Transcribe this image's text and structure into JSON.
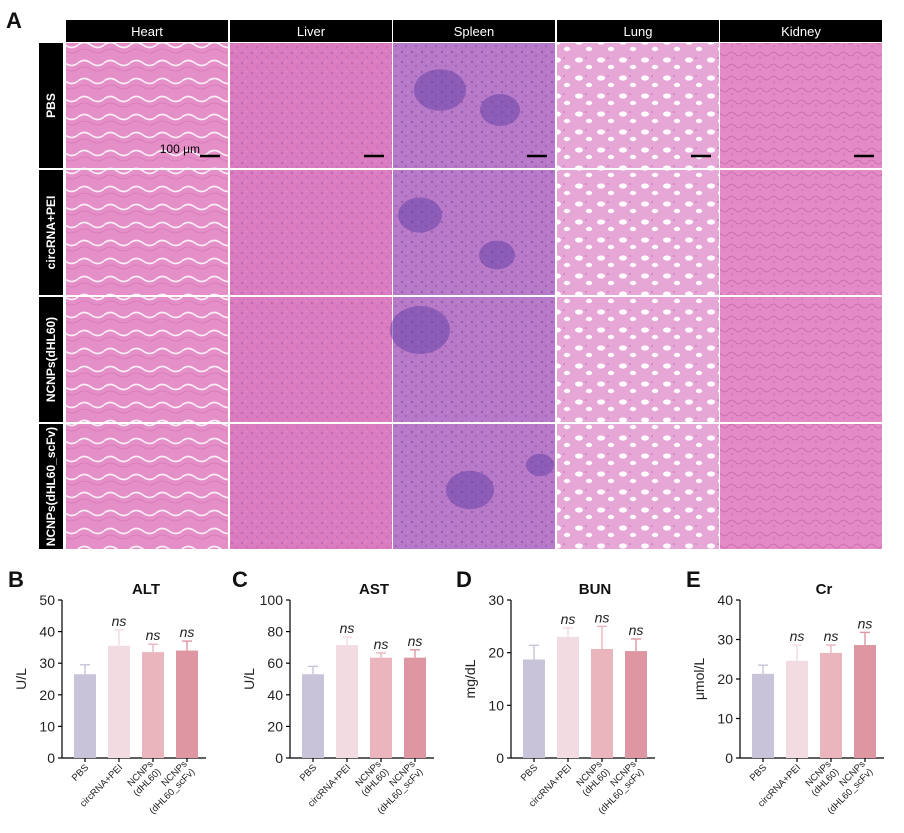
{
  "panel_labels": {
    "A": "A",
    "B": "B",
    "C": "C",
    "D": "D",
    "E": "E"
  },
  "histology": {
    "organs": [
      "Heart",
      "Liver",
      "Spleen",
      "Lung",
      "Kidney"
    ],
    "groups": [
      "PBS",
      "circRNA+PEI",
      "NCNPs(dHL60)",
      "NCNPs(dHL60_scFv)"
    ],
    "scale_bar_label": "100 μm",
    "tissue_colors": {
      "Heart": "#e58fc8",
      "Liver": "#dc7cc0",
      "Spleen": "#b979c9",
      "Lung": "#e6a6d6",
      "Kidney": "#e48ac6"
    }
  },
  "bar_colors": [
    "#c8c3d8",
    "#f3dce1",
    "#ebb5be",
    "#de97a2"
  ],
  "chart_data": [
    {
      "type": "bar",
      "title": "ALT",
      "ylabel": "U/L",
      "ylim": [
        0,
        50
      ],
      "yticks": [
        "0",
        "10",
        "20",
        "30",
        "40",
        "50"
      ],
      "categories": [
        "PBS",
        "circRNA+PEI",
        "NCNPs\n(dHL60)",
        "NCNPs\n(dHL60_scFv)"
      ],
      "values": [
        26.5,
        35.5,
        33.5,
        34
      ],
      "errors": [
        3,
        5,
        2.5,
        3
      ],
      "annotations": [
        "",
        "ns",
        "ns",
        "ns"
      ]
    },
    {
      "type": "bar",
      "title": "AST",
      "ylabel": "U/L",
      "ylim": [
        0,
        100
      ],
      "yticks": [
        "0",
        "20",
        "40",
        "60",
        "80",
        "100"
      ],
      "categories": [
        "PBS",
        "circRNA+PEI",
        "NCNPs\n(dHL60)",
        "NCNPs\n(dHL60_scFv)"
      ],
      "values": [
        53,
        71.5,
        63.5,
        63.5
      ],
      "errors": [
        5,
        5,
        3,
        5
      ],
      "annotations": [
        "",
        "ns",
        "ns",
        "ns"
      ]
    },
    {
      "type": "bar",
      "title": "BUN",
      "ylabel": "mg/dL",
      "ylim": [
        0,
        30
      ],
      "yticks": [
        "0",
        "10",
        "20",
        "30"
      ],
      "categories": [
        "PBS",
        "circRNA+PEI",
        "NCNPs\n(dHL60)",
        "NCNPs\n(dHL60_scFv)"
      ],
      "values": [
        18.7,
        23,
        20.7,
        20.3
      ],
      "errors": [
        2.7,
        1.7,
        4.3,
        2.3
      ],
      "annotations": [
        "",
        "ns",
        "ns",
        "ns"
      ]
    },
    {
      "type": "bar",
      "title": "Cr",
      "ylabel": "μmol/L",
      "ylim": [
        0,
        40
      ],
      "yticks": [
        "0",
        "10",
        "20",
        "30",
        "40"
      ],
      "categories": [
        "PBS",
        "circRNA+PEI",
        "NCNPs\n(dHL60)",
        "NCNPs\n(dHL60_scFv)"
      ],
      "values": [
        21.3,
        24.6,
        26.6,
        28.6
      ],
      "errors": [
        2.2,
        4.0,
        2.0,
        3.2
      ],
      "annotations": [
        "",
        "ns",
        "ns",
        "ns"
      ]
    }
  ]
}
